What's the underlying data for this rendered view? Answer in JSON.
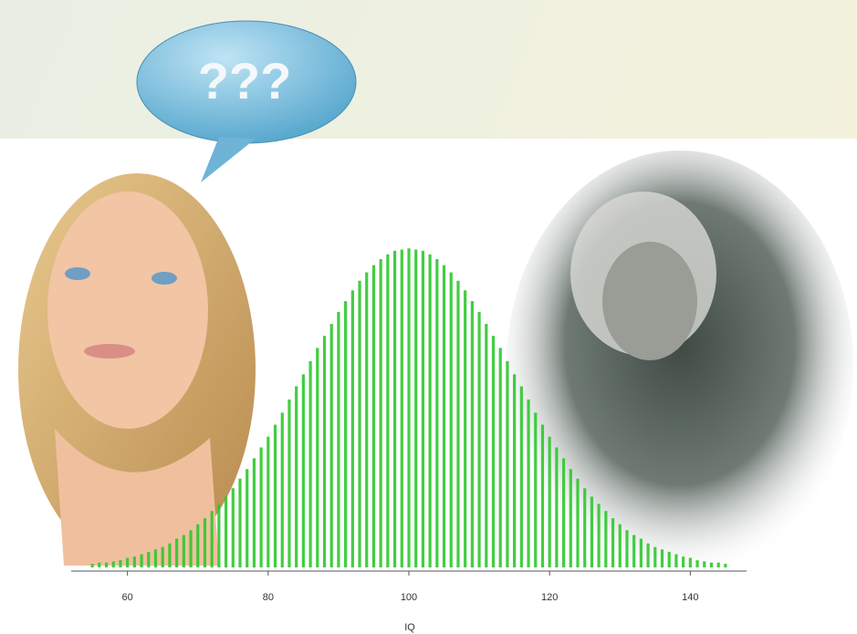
{
  "bubble_text": "???",
  "chart_data": {
    "type": "bar",
    "x_label": "IQ",
    "x": [
      55,
      56,
      57,
      58,
      59,
      60,
      61,
      62,
      63,
      64,
      65,
      66,
      67,
      68,
      69,
      70,
      71,
      72,
      73,
      74,
      75,
      76,
      77,
      78,
      79,
      80,
      81,
      82,
      83,
      84,
      85,
      86,
      87,
      88,
      89,
      90,
      91,
      92,
      93,
      94,
      95,
      96,
      97,
      98,
      99,
      100,
      101,
      102,
      103,
      104,
      105,
      106,
      107,
      108,
      109,
      110,
      111,
      112,
      113,
      114,
      115,
      116,
      117,
      118,
      119,
      120,
      121,
      122,
      123,
      124,
      125,
      126,
      127,
      128,
      129,
      130,
      131,
      132,
      133,
      134,
      135,
      136,
      137,
      138,
      139,
      140,
      141,
      142,
      143,
      144,
      145
    ],
    "values": [
      0.03,
      0.04,
      0.04,
      0.05,
      0.06,
      0.08,
      0.09,
      0.11,
      0.13,
      0.15,
      0.17,
      0.2,
      0.24,
      0.27,
      0.31,
      0.36,
      0.41,
      0.47,
      0.53,
      0.59,
      0.66,
      0.74,
      0.82,
      0.91,
      1.0,
      1.09,
      1.19,
      1.29,
      1.4,
      1.51,
      1.61,
      1.72,
      1.83,
      1.93,
      2.03,
      2.13,
      2.22,
      2.31,
      2.39,
      2.46,
      2.52,
      2.57,
      2.61,
      2.64,
      2.65,
      2.66,
      2.65,
      2.64,
      2.61,
      2.57,
      2.52,
      2.46,
      2.39,
      2.31,
      2.22,
      2.13,
      2.03,
      1.93,
      1.83,
      1.72,
      1.61,
      1.51,
      1.4,
      1.29,
      1.19,
      1.09,
      1.0,
      0.91,
      0.82,
      0.74,
      0.66,
      0.59,
      0.53,
      0.47,
      0.41,
      0.36,
      0.31,
      0.27,
      0.24,
      0.2,
      0.17,
      0.15,
      0.13,
      0.11,
      0.09,
      0.08,
      0.06,
      0.05,
      0.04,
      0.04,
      0.03
    ],
    "color": "#2ec82e",
    "xlim": [
      52,
      148
    ],
    "xticks": [
      60,
      80,
      100,
      120,
      140
    ],
    "ylim": [
      0,
      2.7
    ]
  }
}
